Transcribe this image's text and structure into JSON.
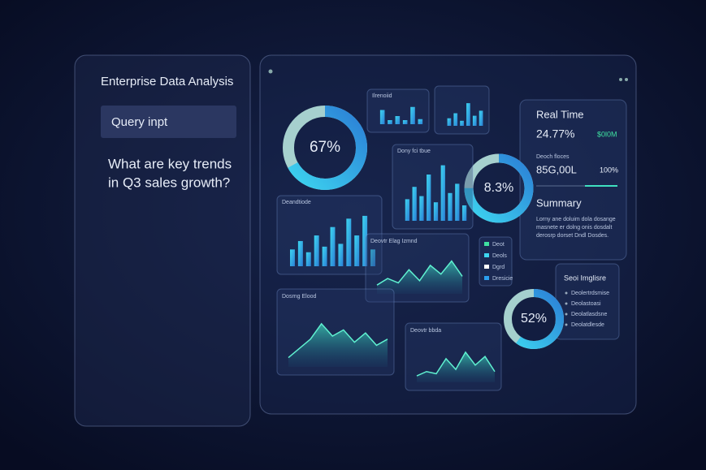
{
  "sidebar": {
    "title": "Enterprise Data Analysis",
    "query_label": "Query inpt",
    "question": [
      "What are key trends",
      "in Q3 sales growth?"
    ]
  },
  "donuts": [
    {
      "label": "67%"
    },
    {
      "label": "8.3%"
    },
    {
      "label": "52%"
    }
  ],
  "bar_panels": [
    {
      "title": "Ilrenoiid",
      "values": [
        70,
        20,
        40,
        20,
        85,
        25
      ]
    },
    {
      "title": "",
      "values": [
        30,
        50,
        20,
        90,
        40,
        60
      ]
    },
    {
      "title": "Dony fci tbue",
      "values": [
        35,
        55,
        40,
        75,
        30,
        90,
        45,
        60,
        25
      ]
    },
    {
      "title": "Deandtiode",
      "values": [
        30,
        45,
        25,
        55,
        35,
        70,
        40,
        85,
        55,
        90,
        30
      ]
    }
  ],
  "area_panels": [
    {
      "title": "Deovtr Elag Izmnd",
      "values": [
        20,
        35,
        25,
        55,
        30,
        65,
        45,
        75,
        40
      ]
    },
    {
      "title": "Dosrng Elood",
      "values": [
        15,
        30,
        45,
        70,
        50,
        60,
        40,
        55,
        35,
        45
      ]
    },
    {
      "title": "Deovtr bbda",
      "values": [
        15,
        25,
        20,
        55,
        30,
        70,
        40,
        60,
        25
      ]
    }
  ],
  "realtime": {
    "title": "Real Time",
    "value": "24.77%",
    "badge": "$0l0M",
    "sublabel": "Deoch floces",
    "amount": "85G,00L",
    "pct": "100%"
  },
  "summary": {
    "title": "Summary",
    "lines": [
      "Lorny ane doluim dola dosange",
      "masnete er dolng onis dosdalt",
      "derosrp dorset Dndl Dosdes."
    ]
  },
  "legend": [
    "Deot",
    "Deols",
    "Dgrd",
    "Dresicie"
  ],
  "list_panel": {
    "title": "Seoi Imglisre",
    "items": [
      "Deolertrdsmise",
      "Deolastoasi",
      "Deolatlasdsne",
      "Deolatdlesde"
    ]
  }
}
